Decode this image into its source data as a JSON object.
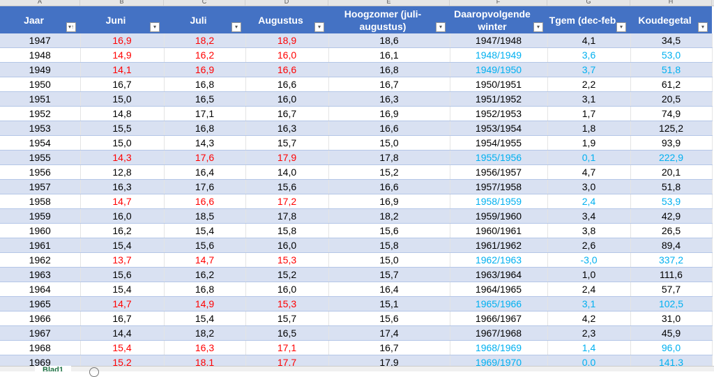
{
  "column_letters": [
    "A",
    "B",
    "C",
    "D",
    "E",
    "F",
    "G",
    "H"
  ],
  "headers": [
    "Jaar",
    "Juni",
    "Juli",
    "Augustus",
    "Hoogzomer (juli-augustus)",
    "Daaropvolgende winter",
    "Tgem (dec-feb",
    "Koudegetal"
  ],
  "colors": {
    "header": "#4472c4",
    "band": "#d9e1f2",
    "hot_summer": "#ff0000",
    "cold_winter": "#00b0f0"
  },
  "rows": [
    [
      "1947",
      "16,9",
      "18,2",
      "18,9",
      "18,6",
      "1947/1948",
      "4,1",
      "34,5",
      1,
      0
    ],
    [
      "1948",
      "14,9",
      "16,2",
      "16,0",
      "16,1",
      "1948/1949",
      "3,6",
      "53,0",
      1,
      1
    ],
    [
      "1949",
      "14,1",
      "16,9",
      "16,6",
      "16,8",
      "1949/1950",
      "3,7",
      "51,8",
      1,
      1
    ],
    [
      "1950",
      "16,7",
      "16,8",
      "16,6",
      "16,7",
      "1950/1951",
      "2,2",
      "61,2",
      0,
      0
    ],
    [
      "1951",
      "15,0",
      "16,5",
      "16,0",
      "16,3",
      "1951/1952",
      "3,1",
      "20,5",
      0,
      0
    ],
    [
      "1952",
      "14,8",
      "17,1",
      "16,7",
      "16,9",
      "1952/1953",
      "1,7",
      "74,9",
      0,
      0
    ],
    [
      "1953",
      "15,5",
      "16,8",
      "16,3",
      "16,6",
      "1953/1954",
      "1,8",
      "125,2",
      0,
      0
    ],
    [
      "1954",
      "15,0",
      "14,3",
      "15,7",
      "15,0",
      "1954/1955",
      "1,9",
      "93,9",
      0,
      0
    ],
    [
      "1955",
      "14,3",
      "17,6",
      "17,9",
      "17,8",
      "1955/1956",
      "0,1",
      "222,9",
      1,
      1
    ],
    [
      "1956",
      "12,8",
      "16,4",
      "14,0",
      "15,2",
      "1956/1957",
      "4,7",
      "20,1",
      0,
      0
    ],
    [
      "1957",
      "16,3",
      "17,6",
      "15,6",
      "16,6",
      "1957/1958",
      "3,0",
      "51,8",
      0,
      0
    ],
    [
      "1958",
      "14,7",
      "16,6",
      "17,2",
      "16,9",
      "1958/1959",
      "2,4",
      "53,9",
      1,
      1
    ],
    [
      "1959",
      "16,0",
      "18,5",
      "17,8",
      "18,2",
      "1959/1960",
      "3,4",
      "42,9",
      0,
      0
    ],
    [
      "1960",
      "16,2",
      "15,4",
      "15,8",
      "15,6",
      "1960/1961",
      "3,8",
      "26,5",
      0,
      0
    ],
    [
      "1961",
      "15,4",
      "15,6",
      "16,0",
      "15,8",
      "1961/1962",
      "2,6",
      "89,4",
      0,
      0
    ],
    [
      "1962",
      "13,7",
      "14,7",
      "15,3",
      "15,0",
      "1962/1963",
      "-3,0",
      "337,2",
      1,
      1
    ],
    [
      "1963",
      "15,6",
      "16,2",
      "15,2",
      "15,7",
      "1963/1964",
      "1,0",
      "111,6",
      0,
      0
    ],
    [
      "1964",
      "15,4",
      "16,8",
      "16,0",
      "16,4",
      "1964/1965",
      "2,4",
      "57,7",
      0,
      0
    ],
    [
      "1965",
      "14,7",
      "14,9",
      "15,3",
      "15,1",
      "1965/1966",
      "3,1",
      "102,5",
      1,
      1
    ],
    [
      "1966",
      "16,7",
      "15,4",
      "15,7",
      "15,6",
      "1966/1967",
      "4,2",
      "31,0",
      0,
      0
    ],
    [
      "1967",
      "14,4",
      "18,2",
      "16,5",
      "17,4",
      "1967/1968",
      "2,3",
      "45,9",
      0,
      0
    ],
    [
      "1968",
      "15,4",
      "16,3",
      "17,1",
      "16,7",
      "1968/1969",
      "1,4",
      "96,0",
      1,
      1
    ],
    [
      "1969",
      "15,2",
      "18,1",
      "17,7",
      "17,9",
      "1969/1970",
      "0,0",
      "141,3",
      1,
      1
    ]
  ],
  "sheet_tab": "Blad1"
}
